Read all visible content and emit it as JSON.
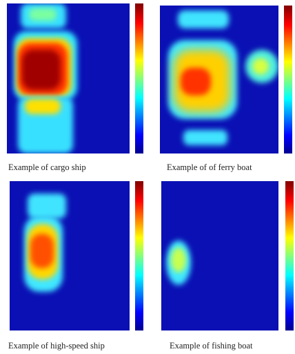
{
  "figure": {
    "panels": [
      {
        "caption": "Example of cargo ship"
      },
      {
        "caption": "Example of of ferry boat"
      },
      {
        "caption": "Example of high-speed ship"
      },
      {
        "caption": "Example of fishing boat"
      }
    ]
  }
}
